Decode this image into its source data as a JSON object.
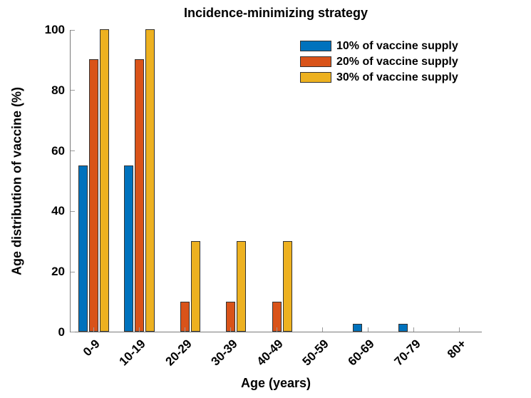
{
  "chart_data": {
    "type": "bar",
    "title": "Incidence-minimizing strategy",
    "xlabel": "Age (years)",
    "ylabel": "Age distribution of vaccine (%)",
    "categories": [
      "0-9",
      "10-19",
      "20-29",
      "30-39",
      "40-49",
      "50-59",
      "60-69",
      "70-79",
      "80+"
    ],
    "series": [
      {
        "name": "10% of vaccine supply",
        "color": "#0072BD",
        "values": [
          55,
          55,
          0,
          0,
          0,
          0,
          2.5,
          2.5,
          0
        ]
      },
      {
        "name": "20% of vaccine supply",
        "color": "#D95319",
        "values": [
          90,
          90,
          10,
          10,
          10,
          0,
          0,
          0,
          0
        ]
      },
      {
        "name": "30% of vaccine supply",
        "color": "#EDB120",
        "values": [
          100,
          100,
          30,
          30,
          30,
          0,
          0,
          0,
          0
        ]
      }
    ],
    "ylim": [
      0,
      100
    ],
    "yticks": [
      0,
      20,
      40,
      60,
      80,
      100
    ],
    "grid": false,
    "legend_position": "top-right",
    "x_tick_label_rotation_deg": 45,
    "colors": {
      "background": "#ffffff",
      "axis": "#7a7a7a",
      "tick": "#9a9a9a",
      "bar_edge": "#333333",
      "text": "#000000"
    }
  }
}
